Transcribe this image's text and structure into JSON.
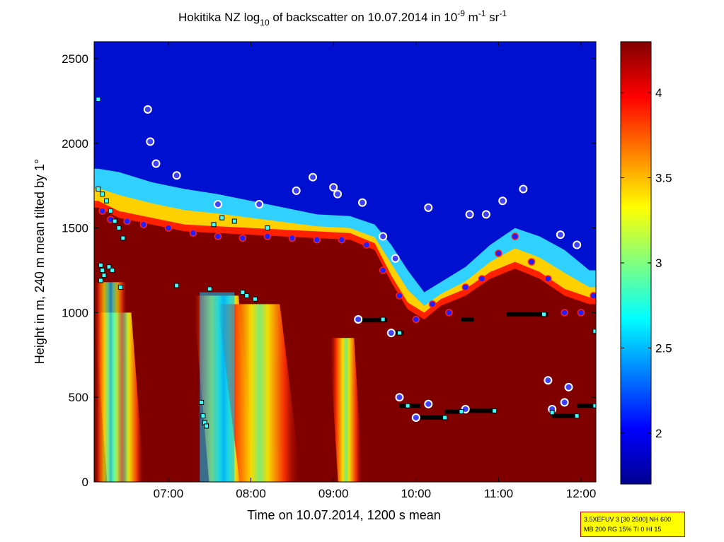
{
  "chart_data": {
    "type": "heatmap",
    "title": {
      "part1": "Hokitika NZ log",
      "sub": "10",
      "part2": " of backscatter on 10.07.2014 in 10",
      "sup1": "-9",
      "part3": " m",
      "sup2": "-1",
      "part4": " sr",
      "sup3": "-1"
    },
    "xlabel": "Time on 10.07.2014, 1200 s mean",
    "ylabel": "Height in m, 240 m mean tilted by 1°",
    "xlim": [
      6.1,
      12.18
    ],
    "ylim": [
      0,
      2600
    ],
    "xticks": [
      {
        "value": 7,
        "label": "07:00"
      },
      {
        "value": 8,
        "label": "08:00"
      },
      {
        "value": 9,
        "label": "09:00"
      },
      {
        "value": 10,
        "label": "10:00"
      },
      {
        "value": 11,
        "label": "11:00"
      },
      {
        "value": 12,
        "label": "12:00"
      }
    ],
    "yticks": [
      0,
      500,
      1000,
      1500,
      2000,
      2500
    ],
    "colorbar": {
      "range": [
        1.7,
        4.3
      ],
      "ticks": [
        "2",
        "2.5",
        "3",
        "3.5",
        "4"
      ],
      "tick_values": [
        2,
        2.5,
        3,
        3.5,
        4
      ],
      "colormap": "jet"
    },
    "cloud_top": [
      [
        6.15,
        1850
      ],
      [
        6.4,
        1830
      ],
      [
        6.8,
        1770
      ],
      [
        7.2,
        1730
      ],
      [
        7.6,
        1700
      ],
      [
        8.0,
        1660
      ],
      [
        8.4,
        1620
      ],
      [
        8.8,
        1580
      ],
      [
        9.2,
        1570
      ],
      [
        9.5,
        1520
      ],
      [
        9.7,
        1400
      ],
      [
        9.9,
        1250
      ],
      [
        10.1,
        1120
      ],
      [
        10.3,
        1180
      ],
      [
        10.6,
        1270
      ],
      [
        10.9,
        1400
      ],
      [
        11.2,
        1500
      ],
      [
        11.5,
        1450
      ],
      [
        11.8,
        1370
      ],
      [
        12.1,
        1250
      ]
    ],
    "layer_top": [
      [
        6.15,
        1620
      ],
      [
        6.4,
        1560
      ],
      [
        6.8,
        1520
      ],
      [
        7.2,
        1480
      ],
      [
        7.6,
        1470
      ],
      [
        8.0,
        1460
      ],
      [
        8.4,
        1450
      ],
      [
        8.8,
        1440
      ],
      [
        9.2,
        1430
      ],
      [
        9.5,
        1370
      ],
      [
        9.7,
        1180
      ],
      [
        9.9,
        1020
      ],
      [
        10.1,
        960
      ],
      [
        10.3,
        1040
      ],
      [
        10.6,
        1100
      ],
      [
        10.9,
        1200
      ],
      [
        11.2,
        1260
      ],
      [
        11.5,
        1200
      ],
      [
        11.8,
        1100
      ],
      [
        12.1,
        1050
      ]
    ],
    "detections_cloud_base": [
      [
        6.2,
        1600
      ],
      [
        6.3,
        1550
      ],
      [
        6.5,
        1540
      ],
      [
        6.7,
        1520
      ],
      [
        7.0,
        1500
      ],
      [
        7.3,
        1470
      ],
      [
        7.6,
        1450
      ],
      [
        7.9,
        1440
      ],
      [
        8.2,
        1450
      ],
      [
        8.5,
        1440
      ],
      [
        8.8,
        1430
      ],
      [
        9.1,
        1430
      ],
      [
        9.4,
        1400
      ],
      [
        9.6,
        1250
      ],
      [
        9.8,
        1100
      ],
      [
        10.0,
        960
      ],
      [
        10.2,
        1050
      ],
      [
        10.4,
        1000
      ],
      [
        10.6,
        1150
      ],
      [
        10.8,
        1200
      ],
      [
        11.0,
        1350
      ],
      [
        11.2,
        1450
      ],
      [
        11.4,
        1300
      ],
      [
        11.6,
        1200
      ],
      [
        11.8,
        1000
      ],
      [
        12.0,
        1000
      ],
      [
        12.15,
        1100
      ]
    ],
    "detections_white": [
      [
        6.75,
        2200
      ],
      [
        6.78,
        2010
      ],
      [
        6.85,
        1880
      ],
      [
        7.1,
        1810
      ],
      [
        7.6,
        1640
      ],
      [
        8.1,
        1640
      ],
      [
        8.55,
        1720
      ],
      [
        8.75,
        1800
      ],
      [
        9.0,
        1740
      ],
      [
        9.05,
        1700
      ],
      [
        9.35,
        1650
      ],
      [
        9.6,
        1450
      ],
      [
        9.75,
        1320
      ],
      [
        10.15,
        1620
      ],
      [
        10.65,
        1580
      ],
      [
        10.85,
        1580
      ],
      [
        11.05,
        1660
      ],
      [
        11.3,
        1730
      ],
      [
        11.75,
        1460
      ],
      [
        11.95,
        1400
      ],
      [
        9.3,
        960
      ],
      [
        9.7,
        880
      ],
      [
        9.8,
        500
      ],
      [
        10.0,
        380
      ],
      [
        10.15,
        460
      ],
      [
        10.6,
        430
      ],
      [
        11.6,
        600
      ],
      [
        11.85,
        560
      ],
      [
        11.8,
        470
      ],
      [
        11.65,
        430
      ]
    ],
    "segments_black": [
      [
        9.3,
        9.65,
        955
      ],
      [
        9.65,
        9.85,
        880
      ],
      [
        9.8,
        10.05,
        450
      ],
      [
        10.0,
        10.35,
        380
      ],
      [
        10.35,
        10.55,
        415
      ],
      [
        10.6,
        10.95,
        420
      ],
      [
        10.55,
        10.7,
        960
      ],
      [
        11.1,
        11.6,
        990
      ],
      [
        11.65,
        11.95,
        390
      ],
      [
        11.95,
        12.15,
        450
      ]
    ],
    "detections_cyan": [
      [
        6.15,
        1730
      ],
      [
        6.2,
        1700
      ],
      [
        6.25,
        1660
      ],
      [
        6.3,
        1600
      ],
      [
        6.35,
        1540
      ],
      [
        6.4,
        1500
      ],
      [
        6.45,
        1440
      ],
      [
        6.18,
        1280
      ],
      [
        6.2,
        1250
      ],
      [
        6.22,
        1220
      ],
      [
        6.18,
        1190
      ],
      [
        6.28,
        1270
      ],
      [
        6.32,
        1250
      ],
      [
        6.42,
        1150
      ],
      [
        7.1,
        1160
      ],
      [
        7.5,
        1140
      ],
      [
        7.55,
        1520
      ],
      [
        7.65,
        1560
      ],
      [
        7.8,
        1540
      ],
      [
        7.9,
        1120
      ],
      [
        7.95,
        1100
      ],
      [
        8.05,
        1080
      ],
      [
        8.2,
        1500
      ],
      [
        7.4,
        470
      ],
      [
        7.42,
        390
      ],
      [
        7.44,
        350
      ],
      [
        7.46,
        330
      ],
      [
        6.15,
        2260
      ],
      [
        9.6,
        960
      ],
      [
        9.8,
        880
      ],
      [
        9.9,
        450
      ],
      [
        10.35,
        380
      ],
      [
        10.55,
        415
      ],
      [
        10.95,
        420
      ],
      [
        11.55,
        990
      ],
      [
        11.65,
        410
      ],
      [
        11.95,
        390
      ],
      [
        12.17,
        450
      ],
      [
        12.17,
        890
      ]
    ]
  },
  "infobox": {
    "line1": "3.5XEFUV 3 [30 2500] NH 600",
    "line2": "MB 200 RG 15% TI 0 HI 15"
  }
}
